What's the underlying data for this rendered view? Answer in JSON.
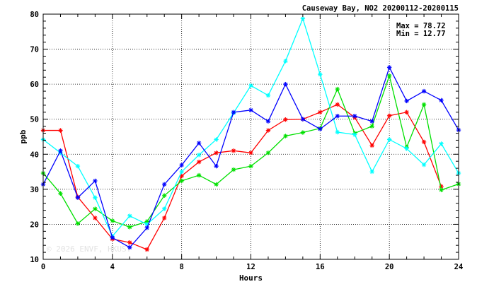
{
  "chart_data": {
    "type": "line",
    "title": "Causeway Bay, NO2 20200112-20200115",
    "xlabel": "Hours",
    "ylabel": "ppb",
    "xlim": [
      0,
      24
    ],
    "ylim": [
      10,
      80
    ],
    "xticks": [
      0,
      4,
      8,
      12,
      16,
      20,
      24
    ],
    "yticks": [
      10,
      20,
      30,
      40,
      50,
      60,
      70,
      80
    ],
    "grid": true,
    "annotations": {
      "max": "Max = 78.72",
      "min": "Min = 12.77"
    },
    "watermark": "© 2026 ENVF, HKUST",
    "x": [
      0,
      1,
      2,
      3,
      4,
      5,
      6,
      7,
      8,
      9,
      10,
      11,
      12,
      13,
      14,
      15,
      16,
      17,
      18,
      19,
      20,
      21,
      22,
      23,
      24
    ],
    "series": [
      {
        "color": "#ff0000",
        "values": [
          46.8,
          46.8,
          27.8,
          21.8,
          15.8,
          14.8,
          12.8,
          21.8,
          33.8,
          37.8,
          40.4,
          41.0,
          40.4,
          46.8,
          49.9,
          50.0,
          52.0,
          54.2,
          50.5,
          42.5,
          51.0,
          52.0,
          43.5,
          30.8,
          null
        ]
      },
      {
        "color": "#00e000",
        "values": [
          34.6,
          28.8,
          20.2,
          24.4,
          21.0,
          19.2,
          20.8,
          28.2,
          32.4,
          34.0,
          31.4,
          35.6,
          36.6,
          40.4,
          45.2,
          46.2,
          47.4,
          58.6,
          46.0,
          48.0,
          62.4,
          42.0,
          54.2,
          29.8,
          31.5
        ]
      },
      {
        "color": "#00ffff",
        "values": [
          44.2,
          40.4,
          36.6,
          27.6,
          16.6,
          22.4,
          20.0,
          24.4,
          35.0,
          39.8,
          44.2,
          51.8,
          59.6,
          56.8,
          66.6,
          78.7,
          62.8,
          46.3,
          45.6,
          35.0,
          44.2,
          41.6,
          37.0,
          43.0,
          34.6
        ]
      },
      {
        "color": "#0000ff",
        "values": [
          31.4,
          41.0,
          27.6,
          32.4,
          16.2,
          13.4,
          19.0,
          31.4,
          36.9,
          43.2,
          36.6,
          52.0,
          52.6,
          49.4,
          60.0,
          50.0,
          47.2,
          50.9,
          50.9,
          49.4,
          64.8,
          55.2,
          58.0,
          55.4,
          46.9
        ]
      }
    ]
  }
}
